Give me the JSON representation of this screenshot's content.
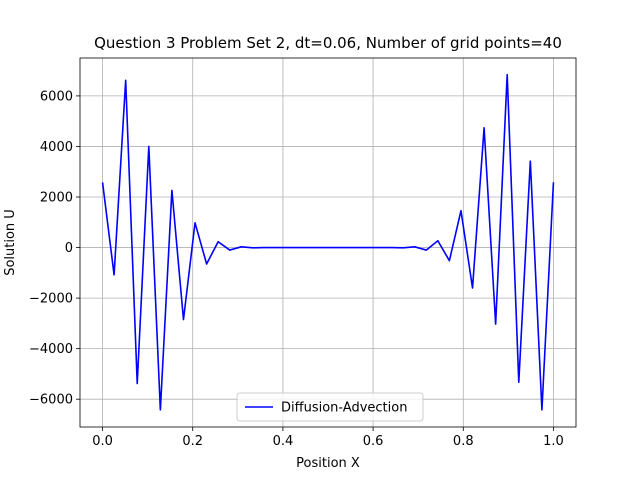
{
  "chart_data": {
    "type": "line",
    "title": "Question 3 Problem Set 2, dt=0.06, Number of grid points=40",
    "xlabel": "Position X",
    "ylabel": "Solution U",
    "xlim": [
      -0.05,
      1.05
    ],
    "ylim": [
      -7100,
      7500
    ],
    "xticks": [
      0.0,
      0.2,
      0.4,
      0.6,
      0.8,
      1.0
    ],
    "xtick_labels": [
      "0.0",
      "0.2",
      "0.4",
      "0.6",
      "0.8",
      "1.0"
    ],
    "yticks": [
      -6000,
      -4000,
      -2000,
      0,
      2000,
      4000,
      6000
    ],
    "ytick_labels": [
      "−6000",
      "−4000",
      "−2000",
      "0",
      "2000",
      "4000",
      "6000"
    ],
    "grid": true,
    "legend_position": "lower center",
    "series": [
      {
        "name": "Diffusion-Advection",
        "color": "#0000ff",
        "x": [
          0.0,
          0.0256,
          0.0513,
          0.0769,
          0.1026,
          0.1282,
          0.1538,
          0.1795,
          0.2051,
          0.2308,
          0.2564,
          0.2821,
          0.3077,
          0.3333,
          0.359,
          0.3846,
          0.4103,
          0.4359,
          0.4615,
          0.4872,
          0.5128,
          0.5385,
          0.5641,
          0.5897,
          0.6154,
          0.641,
          0.6667,
          0.6923,
          0.7179,
          0.7436,
          0.7692,
          0.7949,
          0.8205,
          0.8462,
          0.8718,
          0.8974,
          0.9231,
          0.9487,
          0.9744,
          1.0
        ],
        "y": [
          2580,
          -1080,
          6620,
          -5380,
          4000,
          -6420,
          2260,
          -2850,
          980,
          -650,
          230,
          -100,
          30,
          -10,
          0,
          0,
          0,
          0,
          0,
          0,
          0,
          0,
          0,
          0,
          0,
          0,
          -10,
          30,
          -100,
          270,
          -520,
          1460,
          -1600,
          4740,
          -3030,
          6840,
          -5330,
          3420,
          -6420,
          2580
        ]
      }
    ]
  }
}
